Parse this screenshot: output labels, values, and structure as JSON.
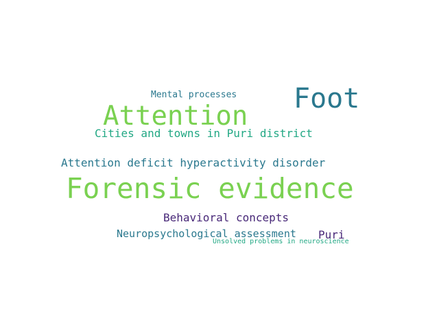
{
  "words": [
    {
      "id": "w-forensic",
      "text": "Forensic evidence",
      "color": "#7ad151"
    },
    {
      "id": "w-attention",
      "text": "Attention",
      "color": "#7ad151"
    },
    {
      "id": "w-foot",
      "text": "Foot",
      "color": "#2a788e"
    },
    {
      "id": "w-cities",
      "text": "Cities and towns in Puri district",
      "color": "#22a884"
    },
    {
      "id": "w-adhd",
      "text": "Attention deficit hyperactivity disorder",
      "color": "#2a788e"
    },
    {
      "id": "w-mental",
      "text": "Mental processes",
      "color": "#2a788e"
    },
    {
      "id": "w-behavioral",
      "text": "Behavioral concepts",
      "color": "#482878"
    },
    {
      "id": "w-neuro",
      "text": "Neuropsychological assessment",
      "color": "#2a788e"
    },
    {
      "id": "w-puri",
      "text": "Puri",
      "color": "#482878"
    },
    {
      "id": "w-unsolved",
      "text": "Unsolved problems in neuroscience",
      "color": "#22a884"
    }
  ]
}
